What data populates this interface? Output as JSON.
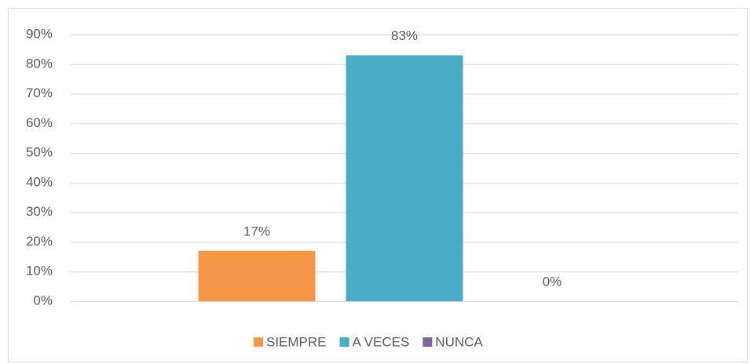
{
  "chart_data": {
    "type": "bar",
    "categories": [
      null
    ],
    "series": [
      {
        "name": "SIEMPRE",
        "color": "#f79646",
        "values": [
          17
        ],
        "value_labels": [
          "17%"
        ]
      },
      {
        "name": "A VECES",
        "color": "#4bacc6",
        "values": [
          83
        ],
        "value_labels": [
          "83%"
        ]
      },
      {
        "name": "NUNCA",
        "color": "#8064a2",
        "values": [
          0
        ],
        "value_labels": [
          "0%"
        ]
      }
    ],
    "ylim": [
      0,
      90
    ],
    "yticks": [
      {
        "value": 0,
        "label": "0%"
      },
      {
        "value": 10,
        "label": "10%"
      },
      {
        "value": 20,
        "label": "20%"
      },
      {
        "value": 30,
        "label": "30%"
      },
      {
        "value": 40,
        "label": "40%"
      },
      {
        "value": 50,
        "label": "50%"
      },
      {
        "value": 60,
        "label": "60%"
      },
      {
        "value": 70,
        "label": "70%"
      },
      {
        "value": 80,
        "label": "80%"
      },
      {
        "value": 90,
        "label": "90%"
      }
    ],
    "grid": true,
    "legend": "bottom"
  }
}
